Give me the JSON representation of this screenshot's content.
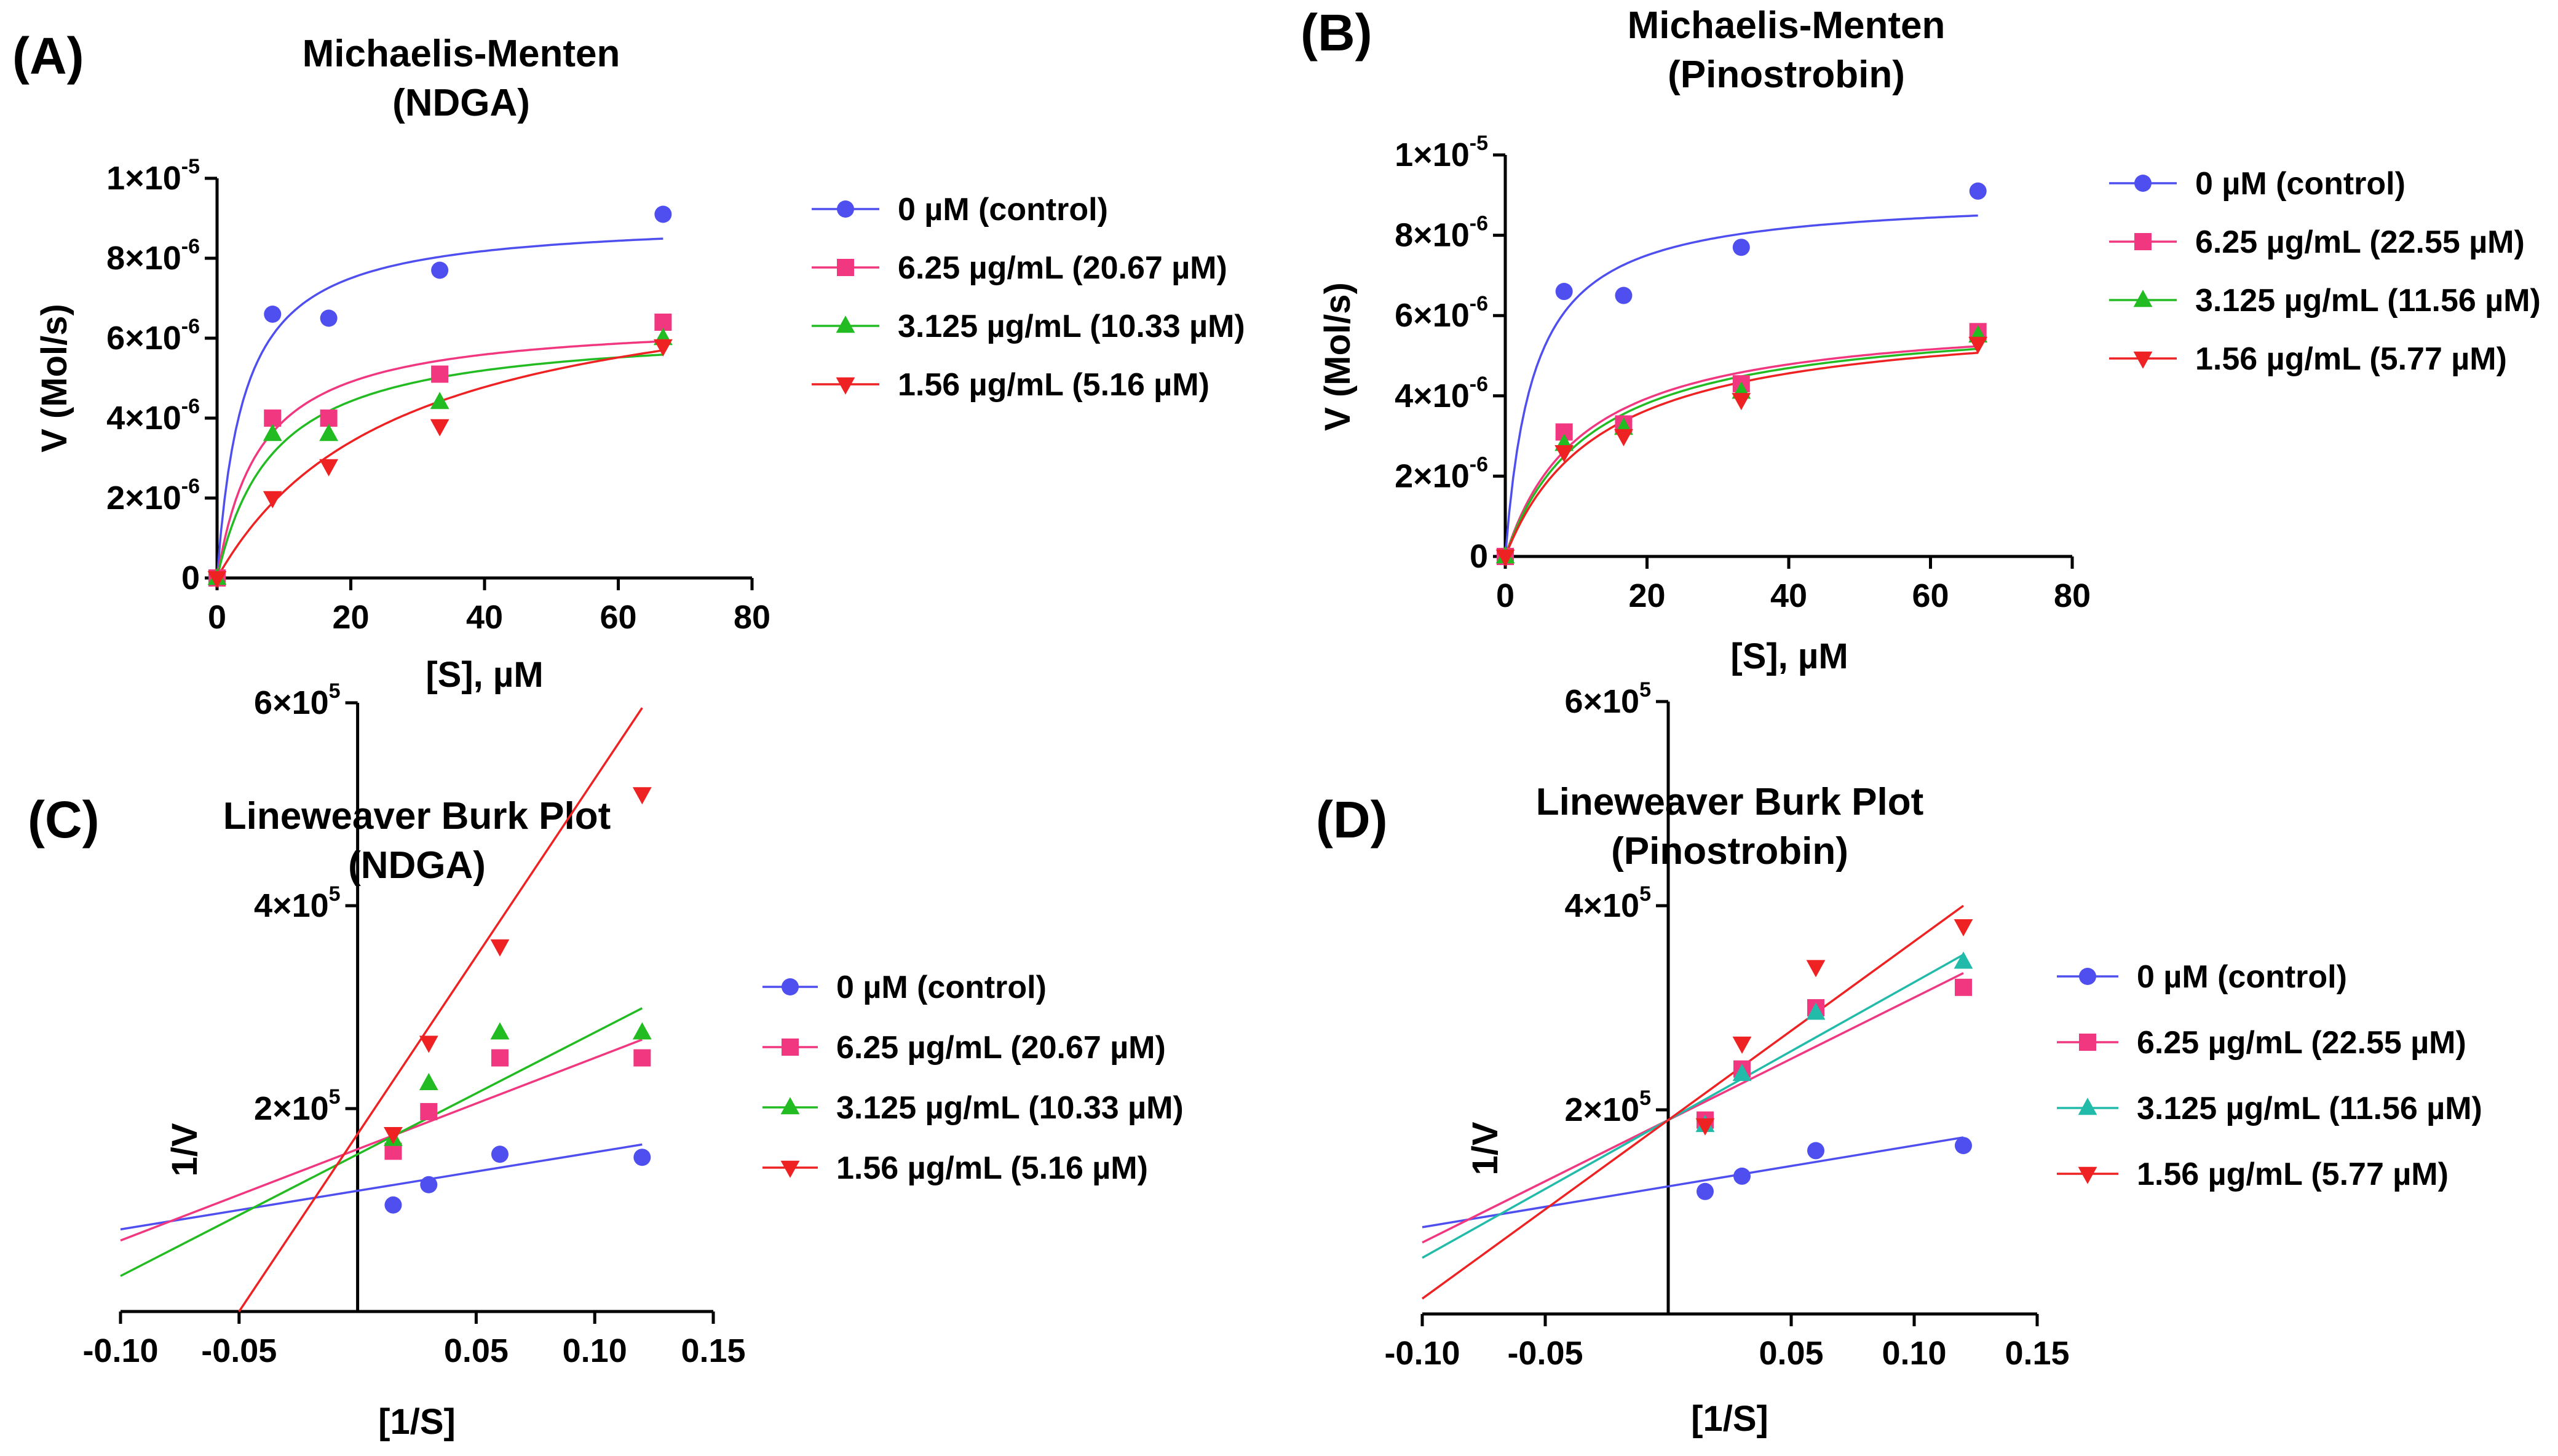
{
  "figure": {
    "background": "#ffffff"
  },
  "chart_data": [
    {
      "id": "A",
      "panel_label": "(A)",
      "type": "scatter",
      "title": "Michaelis-Menten",
      "subtitle": "(NDGA)",
      "xlabel": "[S], µM",
      "ylabel": "V (Mol/s)",
      "xlim": [
        0,
        80
      ],
      "ylim": [
        0,
        1e-05
      ],
      "xticks": [
        0,
        20,
        40,
        60,
        80
      ],
      "xtick_labels": [
        "0",
        "20",
        "40",
        "60",
        "80"
      ],
      "yticks": [
        0,
        2e-06,
        4e-06,
        6e-06,
        8e-06,
        1e-05
      ],
      "ytick_labels": [
        {
          "base": "0",
          "exp": ""
        },
        {
          "base": "2×10",
          "exp": "-6"
        },
        {
          "base": "4×10",
          "exp": "-6"
        },
        {
          "base": "6×10",
          "exp": "-6"
        },
        {
          "base": "8×10",
          "exp": "-6"
        },
        {
          "base": "1×10",
          "exp": "-5"
        }
      ],
      "fit": "michaelis-menten",
      "series": [
        {
          "name": "0 µM (control)",
          "marker": "circle",
          "color": "#4f4ff0",
          "x": [
            0,
            8.3,
            16.7,
            33.3,
            66.7
          ],
          "y": [
            0,
            6.6e-06,
            6.5e-06,
            7.7e-06,
            9.1e-06
          ],
          "vmax": 9e-06,
          "km": 4.0
        },
        {
          "name": "6.25 µg/mL (20.67 µM)",
          "marker": "square",
          "color": "#f0377f",
          "x": [
            0,
            8.3,
            16.7,
            33.3,
            66.7
          ],
          "y": [
            0,
            4e-06,
            4e-06,
            5.1e-06,
            6.4e-06
          ],
          "vmax": 6.5e-06,
          "km": 6.5
        },
        {
          "name": "3.125 µg/mL (10.33 µM)",
          "marker": "triangle-up",
          "color": "#22bb22",
          "x": [
            0,
            8.3,
            16.7,
            33.3,
            66.7
          ],
          "y": [
            0,
            3.6e-06,
            3.6e-06,
            4.4e-06,
            6e-06
          ],
          "vmax": 6.3e-06,
          "km": 8.5
        },
        {
          "name": "1.56 µg/mL (5.16 µM)",
          "marker": "triangle-down",
          "color": "#ee2222",
          "x": [
            0,
            8.3,
            16.7,
            33.3,
            66.7
          ],
          "y": [
            0,
            2e-06,
            2.8e-06,
            3.8e-06,
            5.8e-06
          ],
          "vmax": 8e-06,
          "km": 27
        }
      ],
      "legend": [
        "0 µM (control)",
        "6.25 µg/mL (20.67 µM)",
        "3.125 µg/mL (10.33 µM)",
        "1.56 µg/mL (5.16 µM)"
      ]
    },
    {
      "id": "B",
      "panel_label": "(B)",
      "type": "scatter",
      "title": "Michaelis-Menten",
      "subtitle": "(Pinostrobin)",
      "xlabel": "[S], µM",
      "ylabel": "V (Mol/s)",
      "xlim": [
        0,
        80
      ],
      "ylim": [
        0,
        1e-05
      ],
      "xticks": [
        0,
        20,
        40,
        60,
        80
      ],
      "xtick_labels": [
        "0",
        "20",
        "40",
        "60",
        "80"
      ],
      "yticks": [
        0,
        2e-06,
        4e-06,
        6e-06,
        8e-06,
        1e-05
      ],
      "ytick_labels": [
        {
          "base": "0",
          "exp": ""
        },
        {
          "base": "2×10",
          "exp": "-6"
        },
        {
          "base": "4×10",
          "exp": "-6"
        },
        {
          "base": "6×10",
          "exp": "-6"
        },
        {
          "base": "8×10",
          "exp": "-6"
        },
        {
          "base": "1×10",
          "exp": "-5"
        }
      ],
      "fit": "michaelis-menten",
      "series": [
        {
          "name": "0 µM (control)",
          "marker": "circle",
          "color": "#4f4ff0",
          "x": [
            0,
            8.3,
            16.7,
            33.3,
            66.7
          ],
          "y": [
            0,
            6.6e-06,
            6.5e-06,
            7.7e-06,
            9.1e-06
          ],
          "vmax": 9e-06,
          "km": 4.0
        },
        {
          "name": "6.25 µg/mL (22.55 µM)",
          "marker": "square",
          "color": "#f0377f",
          "x": [
            0,
            8.3,
            16.7,
            33.3,
            66.7
          ],
          "y": [
            0,
            3.1e-06,
            3.3e-06,
            4.3e-06,
            5.6e-06
          ],
          "vmax": 6.1e-06,
          "km": 11
        },
        {
          "name": "3.125 µg/mL (11.56 µM)",
          "marker": "triangle-up",
          "color": "#22bb22",
          "x": [
            0,
            8.3,
            16.7,
            33.3,
            66.7
          ],
          "y": [
            0,
            2.8e-06,
            3.2e-06,
            4.1e-06,
            5.5e-06
          ],
          "vmax": 6.1e-06,
          "km": 12
        },
        {
          "name": "1.56 µg/mL (5.77 µM)",
          "marker": "triangle-down",
          "color": "#ee2222",
          "x": [
            0,
            8.3,
            16.7,
            33.3,
            66.7
          ],
          "y": [
            0,
            2.6e-06,
            3e-06,
            3.9e-06,
            5.3e-06
          ],
          "vmax": 6.1e-06,
          "km": 13.5
        }
      ],
      "legend": [
        "0 µM (control)",
        "6.25 µg/mL (22.55 µM)",
        "3.125 µg/mL (11.56 µM)",
        "1.56 µg/mL (5.77 µM)"
      ]
    },
    {
      "id": "C",
      "panel_label": "(C)",
      "type": "scatter",
      "title": "Lineweaver Burk Plot",
      "subtitle": "(NDGA)",
      "xlabel": "[1/S]",
      "ylabel": "1/V",
      "xlim": [
        -0.1,
        0.15
      ],
      "ylim": [
        0,
        600000
      ],
      "xticks": [
        -0.1,
        -0.05,
        0.05,
        0.1,
        0.15
      ],
      "xtick_labels": [
        "-0.10",
        "-0.05",
        "0.05",
        "0.10",
        "0.15"
      ],
      "yticks": [
        200000,
        400000,
        600000
      ],
      "ytick_labels": [
        {
          "base": "2×10",
          "exp": "5"
        },
        {
          "base": "4×10",
          "exp": "5"
        },
        {
          "base": "6×10",
          "exp": "5"
        }
      ],
      "fit": "linear",
      "series": [
        {
          "name": "0 µM (control)",
          "marker": "circle",
          "color": "#4f4ff0",
          "x": [
            0.015,
            0.03,
            0.06,
            0.12
          ],
          "y": [
            105000,
            125000,
            155000,
            152000
          ],
          "slope": 380000,
          "intercept": 119000
        },
        {
          "name": "6.25 µg/mL (20.67 µM)",
          "marker": "square",
          "color": "#f0377f",
          "x": [
            0.015,
            0.03,
            0.06,
            0.12
          ],
          "y": [
            158000,
            197000,
            250000,
            250000
          ],
          "slope": 900000,
          "intercept": 160000
        },
        {
          "name": "3.125 µg/mL (10.33 µM)",
          "marker": "triangle-up",
          "color": "#22bb22",
          "x": [
            0.015,
            0.03,
            0.06,
            0.12
          ],
          "y": [
            170000,
            225000,
            275000,
            275000
          ],
          "slope": 1200000,
          "intercept": 155000
        },
        {
          "name": "1.56 µg/mL (5.16 µM)",
          "marker": "triangle-down",
          "color": "#ee2222",
          "x": [
            0.015,
            0.03,
            0.06,
            0.12
          ],
          "y": [
            175000,
            265000,
            360000,
            510000
          ],
          "slope": 3500000,
          "intercept": 175000
        }
      ],
      "legend": [
        "0 µM (control)",
        "6.25 µg/mL (20.67 µM)",
        "3.125 µg/mL (10.33 µM)",
        "1.56 µg/mL (5.16 µM)"
      ]
    },
    {
      "id": "D",
      "panel_label": "(D)",
      "type": "scatter",
      "title": "Lineweaver Burk Plot",
      "subtitle": "(Pinostrobin)",
      "xlabel": "[1/S]",
      "ylabel": "1/V",
      "xlim": [
        -0.1,
        0.15
      ],
      "ylim": [
        0,
        600000
      ],
      "xticks": [
        -0.1,
        -0.05,
        0.05,
        0.1,
        0.15
      ],
      "xtick_labels": [
        "-0.10",
        "-0.05",
        "0.05",
        "0.10",
        "0.15"
      ],
      "yticks": [
        200000,
        400000,
        600000
      ],
      "ytick_labels": [
        {
          "base": "2×10",
          "exp": "5"
        },
        {
          "base": "4×10",
          "exp": "5"
        },
        {
          "base": "6×10",
          "exp": "5"
        }
      ],
      "fit": "linear",
      "series": [
        {
          "name": "0 µM (control)",
          "marker": "circle",
          "color": "#4f4ff0",
          "x": [
            0.015,
            0.03,
            0.06,
            0.12
          ],
          "y": [
            120000,
            135000,
            160000,
            165000
          ],
          "slope": 400000,
          "intercept": 125000
        },
        {
          "name": "6.25 µg/mL (22.55 µM)",
          "marker": "square",
          "color": "#f0377f",
          "x": [
            0.015,
            0.03,
            0.06,
            0.12
          ],
          "y": [
            190000,
            240000,
            300000,
            320000
          ],
          "slope": 1200000,
          "intercept": 190000
        },
        {
          "name": "3.125 µg/mL (11.56 µM)",
          "marker": "triangle-up",
          "color": "#22bbaa",
          "x": [
            0.015,
            0.03,
            0.06,
            0.12
          ],
          "y": [
            185000,
            235000,
            295000,
            345000
          ],
          "slope": 1350000,
          "intercept": 190000
        },
        {
          "name": "1.56 µg/mL (5.77 µM)",
          "marker": "triangle-down",
          "color": "#ee2222",
          "x": [
            0.015,
            0.03,
            0.06,
            0.12
          ],
          "y": [
            185000,
            265000,
            340000,
            380000
          ],
          "slope": 1750000,
          "intercept": 190000
        }
      ],
      "legend": [
        "0 µM (control)",
        "6.25 µg/mL (22.55 µM)",
        "3.125 µg/mL (11.56 µM)",
        "1.56 µg/mL (5.77 µM)"
      ]
    }
  ]
}
